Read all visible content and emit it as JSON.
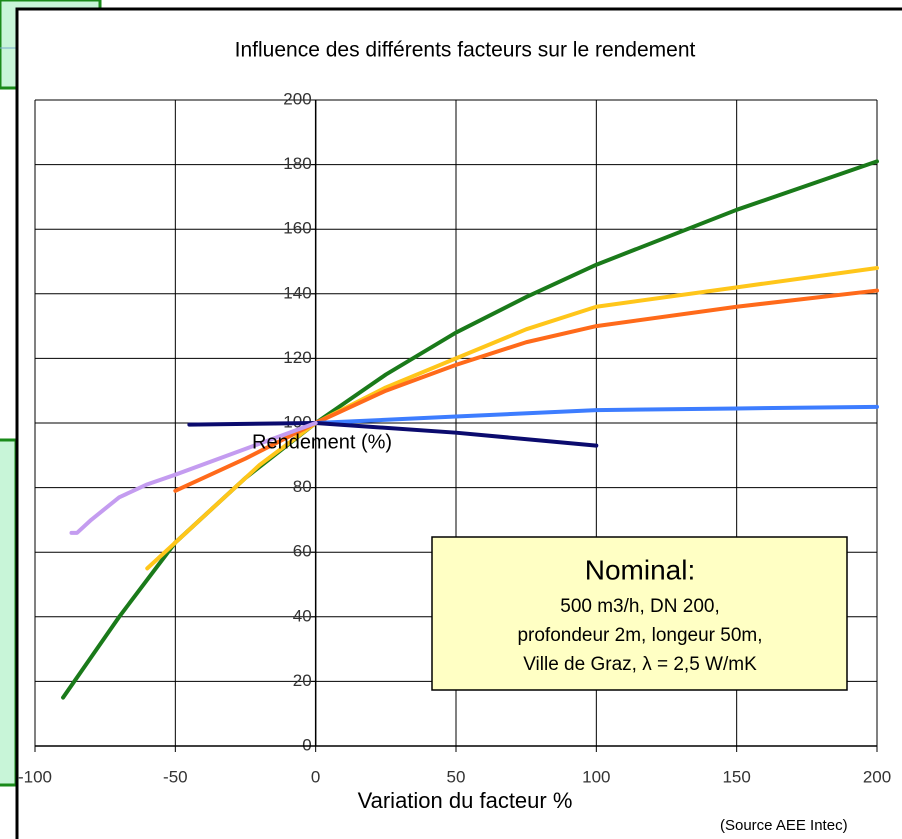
{
  "chart_data": {
    "type": "line",
    "title": "Influence des différents facteurs sur le rendement",
    "x_label": "Variation du facteur %",
    "y_label": "Rendement (%)",
    "source": "(Source AEE Intec)",
    "annotation": {
      "heading": "Nominal:",
      "lines": [
        "500 m3/h, DN 200,",
        "profondeur 2m, longeur  50m,",
        "Ville de Graz, λ = 2,5 W/mK"
      ]
    },
    "xlim": [
      -100,
      200
    ],
    "xticks": [
      -100,
      -50,
      0,
      50,
      100,
      150,
      200
    ],
    "ylim": [
      0,
      200
    ],
    "yticks": [
      0,
      20,
      40,
      60,
      80,
      100,
      120,
      140,
      160,
      180,
      200
    ],
    "grid": true,
    "series": [
      {
        "color": "#1a7a1a",
        "x": [
          -90,
          -70,
          -50,
          -25,
          0,
          25,
          50,
          75,
          100,
          150,
          200
        ],
        "values": [
          15,
          40,
          63,
          83,
          100,
          115,
          128,
          139,
          149,
          166,
          181
        ]
      },
      {
        "color": "#ffc61a",
        "x": [
          -60,
          -40,
          -20,
          0,
          25,
          50,
          75,
          100,
          150,
          200
        ],
        "values": [
          55,
          71,
          87,
          100,
          111,
          120,
          129,
          136,
          142,
          148
        ]
      },
      {
        "color": "#ff6a1a",
        "x": [
          -50,
          -25,
          0,
          25,
          50,
          75,
          100,
          150,
          200
        ],
        "values": [
          79,
          89,
          100,
          110,
          118,
          125,
          130,
          136,
          141
        ]
      },
      {
        "color": "#3d7dff",
        "x": [
          0,
          50,
          100,
          150,
          200
        ],
        "values": [
          100,
          102,
          104,
          104.5,
          105
        ]
      },
      {
        "color": "#0b0b6e",
        "x": [
          -45,
          0,
          50,
          100
        ],
        "values": [
          99.5,
          100,
          97,
          93
        ]
      },
      {
        "color": "#c49cf0",
        "x": [
          -87,
          -85,
          -80,
          -70,
          -60,
          -50,
          -25,
          0
        ],
        "values": [
          66,
          66,
          70,
          77,
          81,
          84,
          92,
          100
        ]
      }
    ]
  }
}
